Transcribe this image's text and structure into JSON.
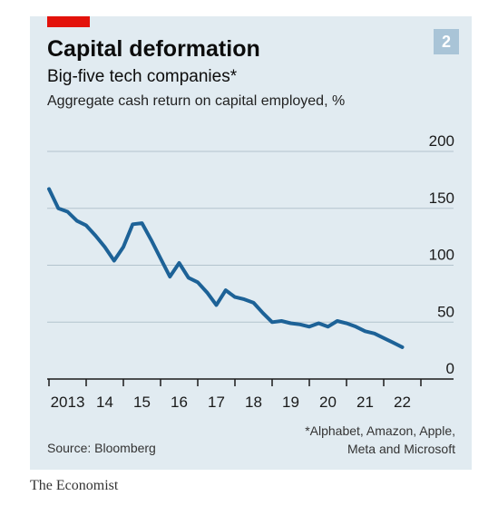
{
  "header": {
    "title": "Capital deformation",
    "subtitle": "Big-five tech companies*",
    "unit_label": "Aggregate cash return on capital employed, %",
    "chart_number": "2"
  },
  "footer": {
    "source": "Source: Bloomberg",
    "footnote_line1": "*Alphabet, Amazon, Apple,",
    "footnote_line2": "Meta and Microsoft",
    "brand": "The Economist"
  },
  "colors": {
    "accent_red": "#e3120b",
    "panel_background": "#e1ebf1",
    "line": "#1d6297",
    "badge": "#a9c4d7"
  },
  "chart_data": {
    "type": "line",
    "title": "Capital deformation",
    "subtitle": "Big-five tech companies*",
    "ylabel": "Aggregate cash return on capital employed, %",
    "ylim": [
      0,
      200
    ],
    "yticks": [
      0,
      50,
      100,
      150,
      200
    ],
    "xlim": [
      2013,
      2023
    ],
    "xtick_labels": [
      "2013",
      "14",
      "15",
      "16",
      "17",
      "18",
      "19",
      "20",
      "21",
      "22"
    ],
    "xticks": [
      2013,
      2014,
      2015,
      2016,
      2017,
      2018,
      2019,
      2020,
      2021,
      2022
    ],
    "grid": true,
    "series": [
      {
        "x": [
          2013.0,
          2013.25,
          2013.5,
          2013.75,
          2014.0,
          2014.25,
          2014.5,
          2014.75,
          2015.0,
          2015.25,
          2015.5,
          2015.75,
          2016.0,
          2016.25,
          2016.5,
          2016.75,
          2017.0,
          2017.25,
          2017.5,
          2017.75,
          2018.0,
          2018.25,
          2018.5,
          2018.75,
          2019.0,
          2019.25,
          2019.5,
          2019.75,
          2020.0,
          2020.25,
          2020.5,
          2020.75,
          2021.0,
          2021.25,
          2021.5,
          2021.75,
          2022.0,
          2022.25,
          2022.5
        ],
        "values": [
          167,
          150,
          147,
          139,
          135,
          126,
          116,
          104,
          116,
          136,
          137,
          122,
          106,
          90,
          102,
          89,
          85,
          76,
          65,
          78,
          72,
          70,
          67,
          58,
          50,
          51,
          49,
          48,
          46,
          49,
          46,
          51,
          49,
          46,
          42,
          40,
          36,
          32,
          28
        ]
      }
    ]
  }
}
